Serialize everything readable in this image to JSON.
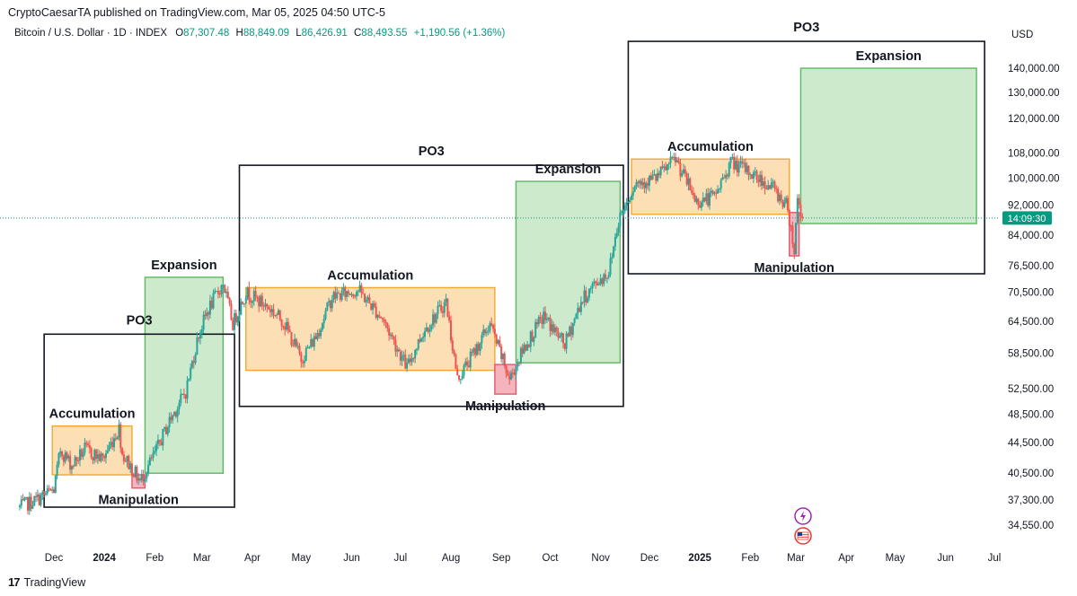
{
  "header": {
    "publisher": "CryptoCaesarTA published on TradingView.com, Mar 05, 2025 04:50 UTC-5",
    "symbol": "Bitcoin / U.S. Dollar · 1D · INDEX",
    "o_label": "O",
    "o_value": "87,307.48",
    "h_label": "H",
    "h_value": "88,849.09",
    "l_label": "L",
    "l_value": "86,426.91",
    "c_label": "C",
    "c_value": "88,493.55",
    "change": "+1,190.56 (+1.36%)",
    "currency": "USD"
  },
  "footer": {
    "brand": "TradingView"
  },
  "colors": {
    "up": "#26a69a",
    "down": "#ef5350",
    "accumulation_fill": "#fcd9a8",
    "accumulation_stroke": "#f0a830",
    "expansion_fill": "#c6e6c4",
    "expansion_stroke": "#5cb860",
    "manipulation_fill": "#f2a7b1",
    "manipulation_stroke": "#e0586c",
    "po3_stroke": "#131722",
    "price_badge": "#089981"
  },
  "chart_data": {
    "type": "candlestick",
    "title": "Bitcoin / U.S. Dollar · 1D · INDEX",
    "y_scale": "log",
    "ylim": [
      32500,
      150000
    ],
    "xlim": [
      "2023-11-10",
      "2025-07-10"
    ],
    "y_ticks": [
      "140,000.00",
      "130,000.00",
      "120,000.00",
      "108,000.00",
      "100,000.00",
      "92,000.00",
      "84,000.00",
      "76,500.00",
      "70,500.00",
      "64,500.00",
      "58,500.00",
      "52,500.00",
      "48,500.00",
      "44,500.00",
      "40,500.00",
      "37,300.00",
      "34,550.00"
    ],
    "x_ticks": [
      {
        "label": "Dec",
        "date": "2023-12-01",
        "bold": false
      },
      {
        "label": "2024",
        "date": "2024-01-01",
        "bold": true
      },
      {
        "label": "Feb",
        "date": "2024-02-01",
        "bold": false
      },
      {
        "label": "Mar",
        "date": "2024-03-01",
        "bold": false
      },
      {
        "label": "Apr",
        "date": "2024-04-01",
        "bold": false
      },
      {
        "label": "May",
        "date": "2024-05-01",
        "bold": false
      },
      {
        "label": "Jun",
        "date": "2024-06-01",
        "bold": false
      },
      {
        "label": "Jul",
        "date": "2024-07-01",
        "bold": false
      },
      {
        "label": "Aug",
        "date": "2024-08-01",
        "bold": false
      },
      {
        "label": "Sep",
        "date": "2024-09-01",
        "bold": false
      },
      {
        "label": "Oct",
        "date": "2024-10-01",
        "bold": false
      },
      {
        "label": "Nov",
        "date": "2024-11-01",
        "bold": false
      },
      {
        "label": "Dec",
        "date": "2024-12-01",
        "bold": false
      },
      {
        "label": "2025",
        "date": "2025-01-01",
        "bold": true
      },
      {
        "label": "Feb",
        "date": "2025-02-01",
        "bold": false
      },
      {
        "label": "Mar",
        "date": "2025-03-01",
        "bold": false
      },
      {
        "label": "Apr",
        "date": "2025-04-01",
        "bold": false
      },
      {
        "label": "May",
        "date": "2025-05-01",
        "bold": false
      },
      {
        "label": "Jun",
        "date": "2025-06-01",
        "bold": false
      },
      {
        "label": "Jul",
        "date": "2025-07-01",
        "bold": false
      }
    ],
    "last_price": 88493.55,
    "price_badge_text": "14:09:30",
    "price_path": [
      [
        "2023-11-10",
        36500
      ],
      [
        "2023-11-20",
        37300
      ],
      [
        "2023-12-01",
        38500
      ],
      [
        "2023-12-05",
        43500
      ],
      [
        "2023-12-12",
        41500
      ],
      [
        "2023-12-20",
        43600
      ],
      [
        "2023-12-31",
        42300
      ],
      [
        "2024-01-10",
        46500
      ],
      [
        "2024-01-12",
        43000
      ],
      [
        "2024-01-23",
        39500
      ],
      [
        "2024-02-01",
        43000
      ],
      [
        "2024-02-10",
        47500
      ],
      [
        "2024-02-20",
        52000
      ],
      [
        "2024-02-28",
        62000
      ],
      [
        "2024-03-05",
        67000
      ],
      [
        "2024-03-14",
        72500
      ],
      [
        "2024-03-20",
        64000
      ],
      [
        "2024-03-28",
        70500
      ],
      [
        "2024-04-12",
        67000
      ],
      [
        "2024-04-20",
        64500
      ],
      [
        "2024-05-01",
        57500
      ],
      [
        "2024-05-10",
        61500
      ],
      [
        "2024-05-20",
        69500
      ],
      [
        "2024-06-05",
        71000
      ],
      [
        "2024-06-20",
        65000
      ],
      [
        "2024-07-05",
        56000
      ],
      [
        "2024-07-15",
        62500
      ],
      [
        "2024-07-29",
        68500
      ],
      [
        "2024-08-05",
        54000
      ],
      [
        "2024-08-15",
        58500
      ],
      [
        "2024-08-25",
        64000
      ],
      [
        "2024-09-06",
        54000
      ],
      [
        "2024-09-15",
        59500
      ],
      [
        "2024-09-27",
        65500
      ],
      [
        "2024-10-10",
        60000
      ],
      [
        "2024-10-20",
        68500
      ],
      [
        "2024-10-29",
        72500
      ],
      [
        "2024-11-06",
        75000
      ],
      [
        "2024-11-12",
        88000
      ],
      [
        "2024-11-22",
        98500
      ],
      [
        "2024-12-05",
        100000
      ],
      [
        "2024-12-17",
        106000
      ],
      [
        "2024-12-30",
        93000
      ],
      [
        "2025-01-10",
        94500
      ],
      [
        "2025-01-20",
        105000
      ],
      [
        "2025-01-31",
        102000
      ],
      [
        "2025-02-15",
        97000
      ],
      [
        "2025-02-24",
        91500
      ],
      [
        "2025-02-28",
        80000
      ],
      [
        "2025-03-02",
        94000
      ],
      [
        "2025-03-05",
        88493.55
      ]
    ],
    "zones": [
      {
        "kind": "po3",
        "label": "PO3",
        "x": [
          "2023-11-25",
          "2024-03-21"
        ],
        "y": [
          36500,
          62000
        ]
      },
      {
        "kind": "accumulation",
        "label": "Accumulation",
        "x": [
          "2023-11-30",
          "2024-01-18"
        ],
        "y": [
          40300,
          46800
        ]
      },
      {
        "kind": "manipulation",
        "label": "Manipulation",
        "x": [
          "2024-01-18",
          "2024-01-26"
        ],
        "y": [
          38700,
          40300
        ]
      },
      {
        "kind": "expansion",
        "label": "Expansion",
        "x": [
          "2024-01-26",
          "2024-03-14"
        ],
        "y": [
          40500,
          73800
        ]
      },
      {
        "kind": "po3",
        "label": "PO3",
        "x": [
          "2024-03-24",
          "2024-11-15"
        ],
        "y": [
          49700,
          104000
        ]
      },
      {
        "kind": "accumulation",
        "label": "Accumulation",
        "x": [
          "2024-03-28",
          "2024-08-28"
        ],
        "y": [
          55500,
          71500
        ]
      },
      {
        "kind": "manipulation",
        "label": "Manipulation",
        "x": [
          "2024-08-28",
          "2024-09-10"
        ],
        "y": [
          51600,
          56500
        ]
      },
      {
        "kind": "expansion",
        "label": "Expansion",
        "x": [
          "2024-09-10",
          "2024-11-13"
        ],
        "y": [
          56800,
          99000
        ]
      },
      {
        "kind": "po3",
        "label": "PO3",
        "x": [
          "2024-11-18",
          "2025-06-25"
        ],
        "y": [
          74600,
          152000
        ]
      },
      {
        "kind": "accumulation",
        "label": "Accumulation",
        "x": [
          "2024-11-20",
          "2025-02-25"
        ],
        "y": [
          89500,
          106000
        ]
      },
      {
        "kind": "manipulation",
        "label": "Manipulation",
        "x": [
          "2025-02-25",
          "2025-03-03"
        ],
        "y": [
          78800,
          90000
        ]
      },
      {
        "kind": "expansion",
        "label": "Expansion",
        "x": [
          "2025-03-04",
          "2025-06-20"
        ],
        "y": [
          87000,
          140000
        ]
      }
    ]
  }
}
